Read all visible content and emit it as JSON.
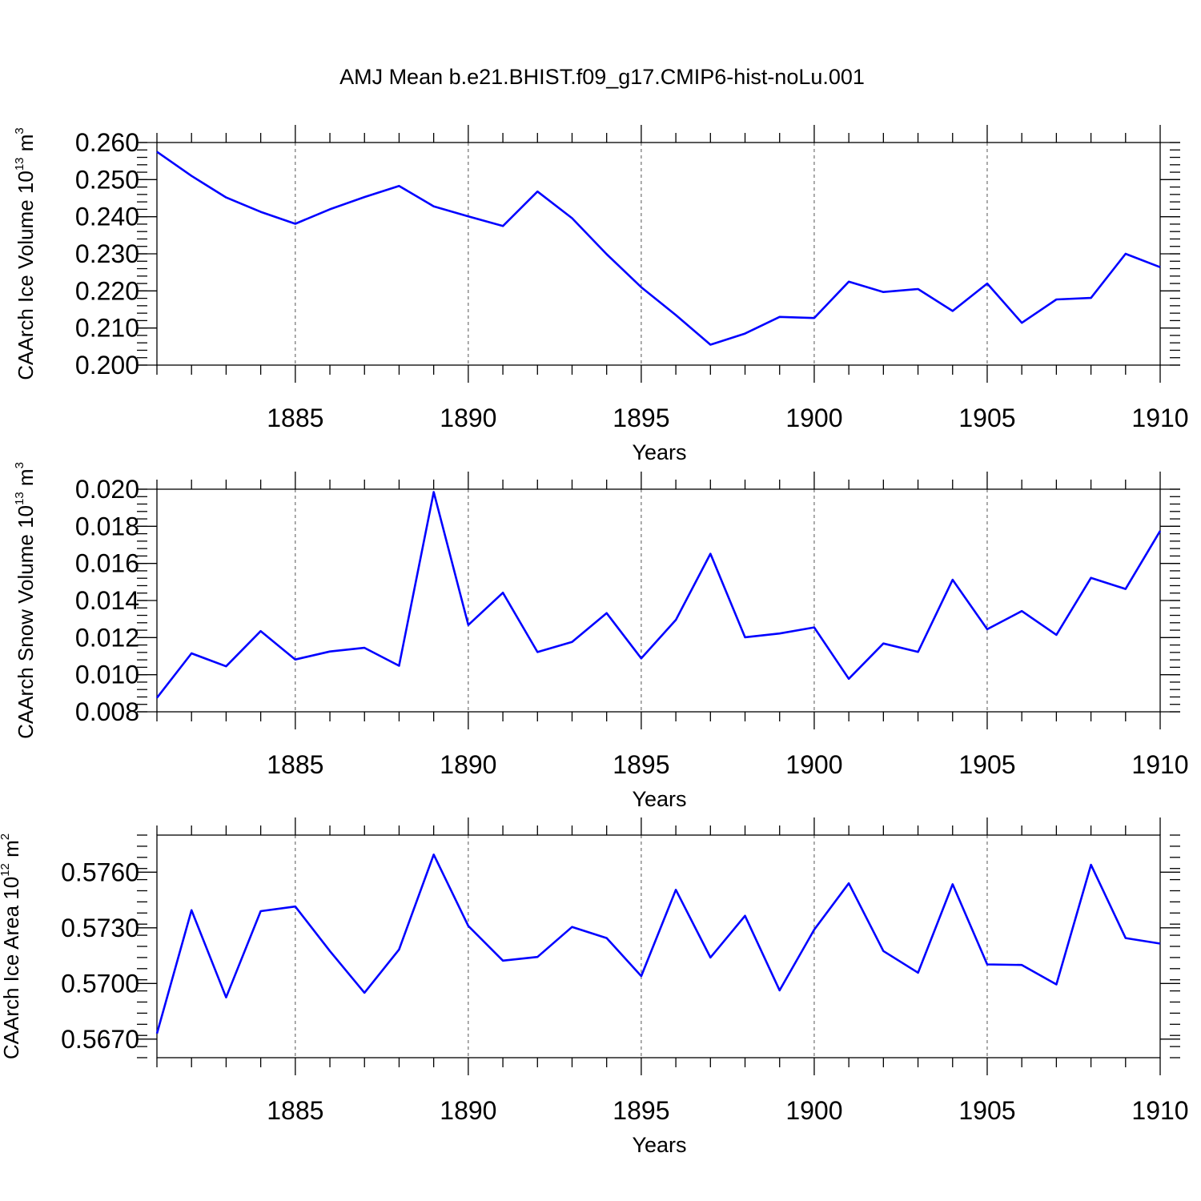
{
  "title": "AMJ Mean b.e21.BHIST.f09_g17.CMIP6-hist-noLu.001",
  "line_color": "#0000ff",
  "chart_data": [
    {
      "type": "line",
      "ylabel_prefix": "CAArch Ice Volume 10",
      "ylabel_exp": "13",
      "ylabel_unit": " m",
      "ylabel_unit_exp": "3",
      "xlabel": "Years",
      "xlim": [
        1881,
        1910
      ],
      "ylim": [
        0.2,
        0.26
      ],
      "xticks": [
        1885,
        1890,
        1895,
        1900,
        1905,
        1910
      ],
      "xtick_labels": [
        "1885",
        "1890",
        "1895",
        "1900",
        "1905",
        "1910"
      ],
      "yticks": [
        0.2,
        0.21,
        0.22,
        0.23,
        0.24,
        0.25,
        0.26
      ],
      "ytick_labels": [
        "0.200",
        "0.210",
        "0.220",
        "0.230",
        "0.240",
        "0.250",
        "0.260"
      ],
      "y_minor_step": 0.002,
      "grid": "vertical dashed at major x ticks",
      "x": [
        1881,
        1882,
        1883,
        1884,
        1885,
        1886,
        1887,
        1888,
        1889,
        1890,
        1891,
        1892,
        1893,
        1894,
        1895,
        1896,
        1897,
        1898,
        1899,
        1900,
        1901,
        1902,
        1903,
        1904,
        1905,
        1906,
        1907,
        1908,
        1909,
        1910
      ],
      "values": [
        0.2575,
        0.251,
        0.2452,
        0.2413,
        0.2381,
        0.242,
        0.2453,
        0.2483,
        0.2428,
        0.2401,
        0.2375,
        0.2468,
        0.2396,
        0.2299,
        0.221,
        0.2135,
        0.2055,
        0.2085,
        0.213,
        0.2127,
        0.2225,
        0.2197,
        0.2205,
        0.2146,
        0.222,
        0.2114,
        0.2177,
        0.2181,
        0.23,
        0.2264
      ]
    },
    {
      "type": "line",
      "ylabel_prefix": "CAArch Snow Volume 10",
      "ylabel_exp": "13",
      "ylabel_unit": " m",
      "ylabel_unit_exp": "3",
      "xlabel": "Years",
      "xlim": [
        1881,
        1910
      ],
      "ylim": [
        0.008,
        0.02
      ],
      "xticks": [
        1885,
        1890,
        1895,
        1900,
        1905,
        1910
      ],
      "xtick_labels": [
        "1885",
        "1890",
        "1895",
        "1900",
        "1905",
        "1910"
      ],
      "yticks": [
        0.008,
        0.01,
        0.012,
        0.014,
        0.016,
        0.018,
        0.02
      ],
      "ytick_labels": [
        "0.008",
        "0.010",
        "0.012",
        "0.014",
        "0.016",
        "0.018",
        "0.020"
      ],
      "y_minor_step": 0.0004,
      "grid": "vertical dashed at major x ticks",
      "x": [
        1881,
        1882,
        1883,
        1884,
        1885,
        1886,
        1887,
        1888,
        1889,
        1890,
        1891,
        1892,
        1893,
        1894,
        1895,
        1896,
        1897,
        1898,
        1899,
        1900,
        1901,
        1902,
        1903,
        1904,
        1905,
        1906,
        1907,
        1908,
        1909,
        1910
      ],
      "values": [
        0.00875,
        0.01115,
        0.01045,
        0.01235,
        0.01082,
        0.01125,
        0.01145,
        0.01048,
        0.01985,
        0.01268,
        0.01442,
        0.01122,
        0.01177,
        0.01332,
        0.01088,
        0.01295,
        0.01652,
        0.01202,
        0.01222,
        0.01255,
        0.00978,
        0.01168,
        0.01123,
        0.01512,
        0.01245,
        0.01343,
        0.01215,
        0.01522,
        0.01462,
        0.01775
      ]
    },
    {
      "type": "line",
      "ylabel_prefix": "CAArch Ice Area 10",
      "ylabel_exp": "12",
      "ylabel_unit": " m",
      "ylabel_unit_exp": "2",
      "xlabel": "Years",
      "xlim": [
        1881,
        1910
      ],
      "ylim": [
        0.566,
        0.578
      ],
      "xticks": [
        1885,
        1890,
        1895,
        1900,
        1905,
        1910
      ],
      "xtick_labels": [
        "1885",
        "1890",
        "1895",
        "1900",
        "1905",
        "1910"
      ],
      "yticks": [
        0.567,
        0.57,
        0.573,
        0.576
      ],
      "ytick_labels": [
        "0.5670",
        "0.5700",
        "0.5730",
        "0.5760"
      ],
      "y_minor_step": 0.0006,
      "grid": "vertical dashed at major x ticks",
      "x": [
        1881,
        1882,
        1883,
        1884,
        1885,
        1886,
        1887,
        1888,
        1889,
        1890,
        1891,
        1892,
        1893,
        1894,
        1895,
        1896,
        1897,
        1898,
        1899,
        1900,
        1901,
        1902,
        1903,
        1904,
        1905,
        1906,
        1907,
        1908,
        1909,
        1910
      ],
      "values": [
        0.5673,
        0.57395,
        0.56925,
        0.5739,
        0.57415,
        0.57175,
        0.5695,
        0.57183,
        0.57695,
        0.5731,
        0.57123,
        0.57143,
        0.57305,
        0.57245,
        0.5704,
        0.57505,
        0.5714,
        0.57365,
        0.56963,
        0.5729,
        0.5754,
        0.57175,
        0.57058,
        0.57535,
        0.57103,
        0.571,
        0.56995,
        0.5764,
        0.57245,
        0.57215
      ]
    }
  ]
}
